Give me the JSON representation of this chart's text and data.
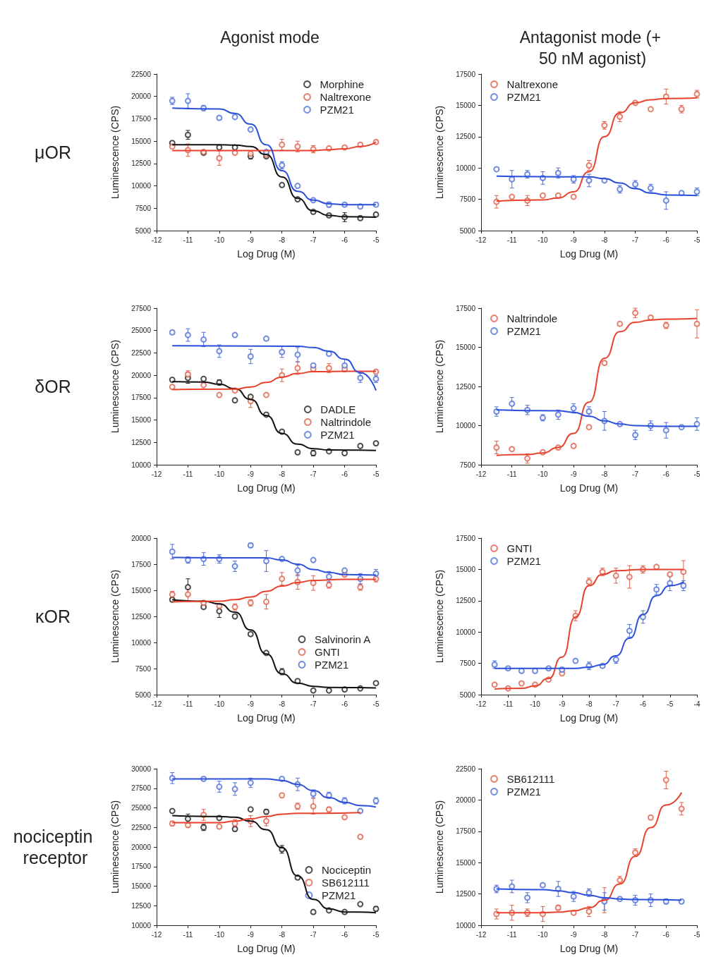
{
  "chart_data": [
    {
      "type": "scatter",
      "title": "Agonist mode",
      "annotations": [
        "μOR"
      ],
      "xlabel": "Log Drug (M)",
      "ylabel": "Luminescence (CPS)",
      "legend": "top right",
      "marker": "circle",
      "xlim": [
        -12,
        -5
      ],
      "xticks": [
        -12,
        -11,
        -10,
        -9,
        -8,
        -7,
        -6,
        -5
      ],
      "ylim": [
        5000,
        22500
      ],
      "yticks": [
        5000,
        7500,
        10000,
        12500,
        15000,
        17500,
        20000,
        22500
      ],
      "x": [
        -11.5,
        -11,
        -10.5,
        -10,
        -9.5,
        -9,
        -8.5,
        -8,
        -7.5,
        -7,
        -6.5,
        -6,
        -5.5,
        -5
      ],
      "series": [
        {
          "name": "Morphine",
          "color": "#222222",
          "values": [
            14800,
            15700,
            13700,
            14300,
            14300,
            13300,
            13300,
            10100,
            8500,
            7100,
            6700,
            6500,
            6400,
            6800
          ],
          "errors": [
            null,
            500,
            null,
            null,
            null,
            300,
            null,
            null,
            null,
            null,
            null,
            500,
            null,
            null
          ]
        },
        {
          "name": "Naltrexone",
          "color": "#e0604a",
          "values": [
            14400,
            14000,
            13800,
            13100,
            13700,
            13600,
            13500,
            14600,
            14400,
            14100,
            14200,
            14300,
            14600,
            14900
          ],
          "errors": [
            null,
            700,
            null,
            800,
            null,
            null,
            null,
            600,
            600,
            400,
            null,
            null,
            null,
            null
          ]
        },
        {
          "name": "PZM21",
          "color": "#4f6fd8",
          "values": [
            19500,
            19500,
            18700,
            17600,
            17700,
            16300,
            13800,
            12300,
            10000,
            8400,
            7900,
            7900,
            7700,
            7900
          ],
          "errors": [
            400,
            800,
            300,
            null,
            null,
            null,
            null,
            400,
            null,
            null,
            300,
            null,
            null,
            null
          ]
        },
        {
          "type": "line",
          "marker": "none",
          "color": "#111111",
          "x": [
            -11.5,
            -10,
            -9.5,
            -9,
            -8.5,
            -8,
            -7.5,
            -7,
            -6.5,
            -6,
            -5
          ],
          "values": [
            14600,
            14600,
            14550,
            14400,
            13500,
            11000,
            8600,
            7200,
            6700,
            6550,
            6500
          ]
        },
        {
          "type": "line",
          "marker": "none",
          "color": "#e8412c",
          "x": [
            -11.5,
            -7,
            -6.5,
            -6,
            -5.5,
            -5
          ],
          "values": [
            13950,
            13950,
            14050,
            14150,
            14400,
            14900
          ]
        },
        {
          "type": "line",
          "marker": "none",
          "color": "#2b4fdb",
          "x": [
            -11.5,
            -10,
            -9.5,
            -9,
            -8.5,
            -8,
            -7.5,
            -7,
            -6.5,
            -6,
            -5
          ],
          "values": [
            18700,
            18600,
            18100,
            16900,
            14600,
            11700,
            9400,
            8400,
            8000,
            7900,
            7900
          ]
        }
      ]
    },
    {
      "type": "scatter",
      "title": "Antagonist mode (+ 50 nM agonist)",
      "xlabel": "Log Drug (M)",
      "ylabel": "Luminescence (CPS)",
      "legend": "top left",
      "marker": "circle",
      "xlim": [
        -12,
        -5
      ],
      "xticks": [
        -12,
        -11,
        -10,
        -9,
        -8,
        -7,
        -6,
        -5
      ],
      "ylim": [
        5000,
        17500
      ],
      "yticks": [
        5000,
        7500,
        10000,
        12500,
        15000,
        17500
      ],
      "x": [
        -11.5,
        -11,
        -10.5,
        -10,
        -9.5,
        -9,
        -8.5,
        -8,
        -7.5,
        -7,
        -6.5,
        -6,
        -5.5,
        -5
      ],
      "series": [
        {
          "name": "Naltrexone",
          "color": "#e0604a",
          "values": [
            7300,
            7700,
            7400,
            7800,
            7800,
            7700,
            10200,
            13400,
            14100,
            15200,
            14700,
            15700,
            14700,
            15900
          ],
          "errors": [
            500,
            null,
            400,
            null,
            null,
            null,
            400,
            300,
            400,
            null,
            null,
            600,
            300,
            300
          ]
        },
        {
          "name": "PZM21",
          "color": "#4f6fd8",
          "values": [
            9900,
            9100,
            9500,
            9200,
            9600,
            9100,
            9000,
            9000,
            8300,
            8700,
            8400,
            7400,
            8000,
            8100
          ],
          "errors": [
            null,
            700,
            300,
            500,
            400,
            300,
            500,
            null,
            300,
            300,
            300,
            700,
            null,
            300
          ]
        },
        {
          "type": "line",
          "marker": "none",
          "color": "#e8412c",
          "x": [
            -11.5,
            -10,
            -9.5,
            -9,
            -8.5,
            -8,
            -7.5,
            -7,
            -6.5,
            -6,
            -5
          ],
          "values": [
            7350,
            7450,
            7600,
            8100,
            9700,
            12500,
            14400,
            15200,
            15450,
            15550,
            15600
          ]
        },
        {
          "type": "line",
          "marker": "none",
          "color": "#2b4fdb",
          "x": [
            -11.5,
            -8.5,
            -8,
            -7.5,
            -7,
            -6.5,
            -6,
            -5
          ],
          "values": [
            9350,
            9300,
            9150,
            8800,
            8350,
            8000,
            7850,
            7800
          ]
        }
      ]
    },
    {
      "type": "scatter",
      "annotations": [
        "δOR"
      ],
      "xlabel": "Log Drug (M)",
      "ylabel": "Luminescence (CPS)",
      "legend": "bottom right",
      "marker": "circle",
      "xlim": [
        -12,
        -5
      ],
      "xticks": [
        -12,
        -11,
        -10,
        -9,
        -8,
        -7,
        -6,
        -5
      ],
      "ylim": [
        10000,
        27500
      ],
      "yticks": [
        10000,
        12500,
        15000,
        17500,
        20000,
        22500,
        25000,
        27500
      ],
      "x": [
        -11.5,
        -11,
        -10.5,
        -10,
        -9.5,
        -9,
        -8.5,
        -8,
        -7.5,
        -7,
        -6.5,
        -6,
        -5.5,
        -5
      ],
      "series": [
        {
          "name": "DADLE",
          "color": "#222222",
          "values": [
            19500,
            19700,
            19600,
            19200,
            17200,
            17600,
            15600,
            13700,
            11400,
            11300,
            11500,
            11300,
            12100,
            12400
          ],
          "errors": [
            null,
            600,
            null,
            300,
            null,
            null,
            null,
            null,
            null,
            300,
            null,
            null,
            null,
            null
          ]
        },
        {
          "name": "Naltrindole",
          "color": "#e0604a",
          "values": [
            18700,
            20100,
            18900,
            17800,
            18300,
            17100,
            17800,
            20000,
            20800,
            20700,
            20800,
            20700,
            null,
            20400
          ],
          "errors": [
            null,
            400,
            null,
            null,
            null,
            700,
            null,
            700,
            700,
            null,
            500,
            null,
            null,
            null
          ]
        },
        {
          "name": "PZM21",
          "color": "#4f6fd8",
          "values": [
            24800,
            24500,
            24000,
            22700,
            24500,
            22100,
            24100,
            22600,
            22300,
            21100,
            22400,
            21100,
            19700,
            19600
          ],
          "errors": [
            null,
            700,
            800,
            700,
            null,
            800,
            null,
            600,
            800,
            null,
            null,
            700,
            500,
            400
          ]
        },
        {
          "type": "line",
          "marker": "none",
          "color": "#111111",
          "x": [
            -11.5,
            -10.5,
            -10,
            -9.5,
            -9,
            -8.5,
            -8,
            -7.5,
            -7,
            -6.5,
            -5
          ],
          "values": [
            19300,
            19250,
            19000,
            18500,
            17300,
            15500,
            13500,
            12300,
            11800,
            11650,
            11600
          ]
        },
        {
          "type": "line",
          "marker": "none",
          "color": "#e8412c",
          "x": [
            -11.5,
            -9.5,
            -9,
            -8.5,
            -8,
            -7.5,
            -7,
            -6,
            -5
          ],
          "values": [
            18400,
            18450,
            18700,
            19200,
            19800,
            20200,
            20400,
            20450,
            20450
          ]
        },
        {
          "type": "line",
          "marker": "none",
          "color": "#2b4fdb",
          "x": [
            -11.5,
            -7.5,
            -7,
            -6.5,
            -6,
            -5.5,
            -5
          ],
          "values": [
            23300,
            23250,
            23100,
            22700,
            21800,
            20300,
            18300
          ]
        }
      ]
    },
    {
      "type": "scatter",
      "xlabel": "Log Drug (M)",
      "ylabel": "Luminescence (CPS)",
      "legend": "top left",
      "marker": "circle",
      "xlim": [
        -12,
        -5
      ],
      "xticks": [
        -12,
        -11,
        -10,
        -9,
        -8,
        -7,
        -6,
        -5
      ],
      "ylim": [
        7500,
        17500
      ],
      "yticks": [
        7500,
        10000,
        12500,
        15000,
        17500
      ],
      "x": [
        -11.5,
        -11,
        -10.5,
        -10,
        -9.5,
        -9,
        -8.5,
        -8,
        -7.5,
        -7,
        -6.5,
        -6,
        -5.5,
        -5
      ],
      "series": [
        {
          "name": "Naltrindole",
          "color": "#e0604a",
          "values": [
            8600,
            8500,
            7900,
            8300,
            8600,
            8700,
            9900,
            14000,
            16500,
            17200,
            16900,
            16400,
            null,
            16500
          ],
          "errors": [
            400,
            null,
            300,
            null,
            null,
            null,
            null,
            null,
            null,
            300,
            null,
            200,
            null,
            900
          ]
        },
        {
          "name": "PZM21",
          "color": "#4f6fd8",
          "values": [
            10900,
            11400,
            11000,
            10500,
            10700,
            11100,
            10900,
            10300,
            10100,
            9400,
            10000,
            9700,
            9900,
            10100
          ],
          "errors": [
            300,
            400,
            300,
            200,
            300,
            300,
            300,
            600,
            null,
            300,
            300,
            500,
            null,
            400
          ]
        },
        {
          "type": "line",
          "marker": "none",
          "color": "#e8412c",
          "x": [
            -11.5,
            -10.5,
            -10,
            -9.5,
            -9,
            -8.5,
            -8,
            -7.5,
            -7,
            -6.5,
            -6,
            -5
          ],
          "values": [
            8100,
            8150,
            8250,
            8600,
            9500,
            11500,
            14300,
            16000,
            16600,
            16750,
            16800,
            16850
          ]
        },
        {
          "type": "line",
          "marker": "none",
          "color": "#2b4fdb",
          "x": [
            -11.5,
            -9.5,
            -9,
            -8.5,
            -8,
            -7.5,
            -7,
            -6,
            -5
          ],
          "values": [
            11000,
            10950,
            10850,
            10600,
            10300,
            10100,
            10000,
            9950,
            9950
          ]
        }
      ]
    },
    {
      "type": "scatter",
      "annotations": [
        "κOR"
      ],
      "xlabel": "Log Drug (M)",
      "ylabel": "Luminescence (CPS)",
      "legend": "bottom right",
      "marker": "circle",
      "xlim": [
        -12,
        -5
      ],
      "xticks": [
        -12,
        -11,
        -10,
        -9,
        -8,
        -7,
        -6,
        -5
      ],
      "ylim": [
        5000,
        20000
      ],
      "yticks": [
        5000,
        7500,
        10000,
        12500,
        15000,
        17500,
        20000
      ],
      "x": [
        -11.5,
        -11,
        -10.5,
        -10,
        -9.5,
        -9,
        -8.5,
        -8,
        -7.5,
        -7,
        -6.5,
        -6,
        -5.5,
        -5
      ],
      "series": [
        {
          "name": "Salvinorin A",
          "color": "#222222",
          "values": [
            14100,
            15300,
            13400,
            13000,
            12500,
            10800,
            9000,
            7200,
            6300,
            5400,
            5400,
            5500,
            5600,
            6100
          ],
          "errors": [
            null,
            800,
            null,
            600,
            null,
            null,
            null,
            300,
            null,
            null,
            null,
            null,
            null,
            null
          ]
        },
        {
          "name": "GNTI",
          "color": "#e0604a",
          "values": [
            14600,
            14600,
            13800,
            13500,
            13400,
            13800,
            13900,
            16100,
            15800,
            15700,
            15500,
            16500,
            15300,
            16100
          ],
          "errors": [
            300,
            700,
            null,
            null,
            300,
            300,
            700,
            600,
            700,
            700,
            300,
            null,
            300,
            300
          ]
        },
        {
          "name": "PZM21",
          "color": "#4f6fd8",
          "values": [
            18700,
            17900,
            18000,
            18000,
            17300,
            19300,
            17800,
            18000,
            16900,
            17900,
            16300,
            16900,
            16100,
            16600
          ],
          "errors": [
            700,
            300,
            600,
            400,
            500,
            200,
            1000,
            null,
            500,
            null,
            500,
            null,
            500,
            400
          ]
        },
        {
          "type": "line",
          "marker": "none",
          "color": "#111111",
          "x": [
            -11.5,
            -10.5,
            -10,
            -9.5,
            -9,
            -8.5,
            -8,
            -7.5,
            -7,
            -6.5,
            -5
          ],
          "values": [
            14100,
            13950,
            13700,
            12900,
            11200,
            8900,
            7000,
            6100,
            5800,
            5700,
            5650
          ]
        },
        {
          "type": "line",
          "marker": "none",
          "color": "#e8412c",
          "x": [
            -11.5,
            -10,
            -9.5,
            -9,
            -8.5,
            -8,
            -7.5,
            -7,
            -6,
            -5
          ],
          "values": [
            13900,
            13950,
            14100,
            14350,
            14900,
            15400,
            15750,
            15950,
            16050,
            16050
          ]
        },
        {
          "type": "line",
          "marker": "none",
          "color": "#2b4fdb",
          "x": [
            -11.5,
            -8.5,
            -8,
            -7.5,
            -7,
            -6.5,
            -6,
            -5
          ],
          "values": [
            18150,
            18100,
            17900,
            17500,
            17000,
            16700,
            16500,
            16450
          ]
        }
      ]
    },
    {
      "type": "scatter",
      "xlabel": "Log Drug (M)",
      "ylabel": "Luminescence (CPS)",
      "legend": "top left",
      "marker": "circle",
      "xlim": [
        -12,
        -4
      ],
      "xticks": [
        -12,
        -11,
        -10,
        -9,
        -8,
        -7,
        -6,
        -5,
        -4
      ],
      "ylim": [
        5000,
        17500
      ],
      "yticks": [
        5000,
        7500,
        10000,
        12500,
        15000,
        17500
      ],
      "x": [
        -11.5,
        -11,
        -10.5,
        -10,
        -9.5,
        -9,
        -8.5,
        -8,
        -7.5,
        -7,
        -6.5,
        -6,
        -5.5,
        -5,
        -4.5
      ],
      "series": [
        {
          "name": "GNTI",
          "color": "#e0604a",
          "values": [
            5800,
            5500,
            5900,
            5800,
            6200,
            6700,
            11300,
            14000,
            14800,
            14500,
            14400,
            15000,
            15200,
            14600,
            14800
          ],
          "errors": [
            null,
            null,
            null,
            null,
            null,
            null,
            400,
            300,
            300,
            600,
            900,
            300,
            null,
            null,
            900
          ]
        },
        {
          "name": "PZM21",
          "color": "#4f6fd8",
          "values": [
            7400,
            7100,
            6900,
            6900,
            7100,
            7000,
            7700,
            7300,
            7300,
            7800,
            10100,
            11200,
            13400,
            13900,
            13700
          ],
          "errors": [
            300,
            null,
            null,
            null,
            null,
            null,
            null,
            300,
            null,
            300,
            500,
            500,
            400,
            600,
            400
          ]
        },
        {
          "type": "line",
          "marker": "none",
          "color": "#e8412c",
          "x": [
            -11.5,
            -10.5,
            -10,
            -9.5,
            -9,
            -8.5,
            -8,
            -7.5,
            -7,
            -6,
            -4.5
          ],
          "values": [
            5450,
            5500,
            5700,
            6300,
            8000,
            11200,
            13700,
            14600,
            14900,
            15000,
            15000
          ]
        },
        {
          "type": "line",
          "marker": "none",
          "color": "#2b4fdb",
          "x": [
            -11.5,
            -8.5,
            -8,
            -7.5,
            -7,
            -6.5,
            -6,
            -5.5,
            -5,
            -4.5
          ],
          "values": [
            7100,
            7100,
            7200,
            7400,
            8100,
            9500,
            11400,
            12900,
            13700,
            14000
          ]
        }
      ]
    },
    {
      "type": "scatter",
      "annotations": [
        "nociceptin receptor"
      ],
      "xlabel": "Log Drug (M)",
      "ylabel": "Luminescence (CPS)",
      "legend": "bottom right",
      "marker": "circle",
      "xlim": [
        -12,
        -5
      ],
      "xticks": [
        -12,
        -11,
        -10,
        -9,
        -8,
        -7,
        -6,
        -5
      ],
      "ylim": [
        10000,
        30000
      ],
      "yticks": [
        10000,
        12500,
        15000,
        17500,
        20000,
        22500,
        25000,
        27500,
        30000
      ],
      "x": [
        -11.5,
        -11,
        -10.5,
        -10,
        -9.5,
        -9,
        -8.5,
        -8,
        -7.5,
        -7,
        -6.5,
        -6,
        -5.5,
        -5
      ],
      "series": [
        {
          "name": "Nociceptin",
          "color": "#222222",
          "values": [
            24600,
            23600,
            22500,
            23700,
            22300,
            24800,
            24500,
            19700,
            16100,
            11700,
            11900,
            11700,
            12700,
            12100
          ],
          "errors": [
            null,
            600,
            400,
            null,
            300,
            null,
            300,
            500,
            null,
            null,
            null,
            null,
            null,
            300
          ]
        },
        {
          "name": "SB612111",
          "color": "#e0604a",
          "values": [
            23000,
            22800,
            24100,
            22600,
            23000,
            23300,
            23300,
            26600,
            25200,
            25200,
            24800,
            23800,
            21300,
            null
          ],
          "errors": [
            300,
            300,
            700,
            null,
            500,
            700,
            600,
            null,
            400,
            1000,
            300,
            null,
            null,
            null
          ]
        },
        {
          "name": "PZM21",
          "color": "#4f6fd8",
          "values": [
            28800,
            null,
            28700,
            27700,
            27400,
            28200,
            null,
            28700,
            28000,
            26800,
            26600,
            25900,
            24600,
            25900
          ],
          "errors": [
            700,
            null,
            null,
            700,
            800,
            600,
            null,
            null,
            800,
            500,
            400,
            400,
            null,
            400
          ]
        },
        {
          "type": "line",
          "marker": "none",
          "color": "#111111",
          "x": [
            -11.5,
            -10,
            -9.5,
            -9,
            -8.5,
            -8,
            -7.5,
            -7,
            -6.5,
            -6,
            -5
          ],
          "values": [
            24000,
            23900,
            23800,
            23300,
            22200,
            19900,
            16300,
            13300,
            12100,
            11700,
            11600
          ]
        },
        {
          "type": "line",
          "marker": "none",
          "color": "#e8412c",
          "x": [
            -11.5,
            -10,
            -9.5,
            -9,
            -8.5,
            -8,
            -7.5,
            -5.5
          ],
          "values": [
            23100,
            23100,
            23300,
            23600,
            23900,
            24200,
            24300,
            24400
          ]
        },
        {
          "type": "line",
          "marker": "none",
          "color": "#2b4fdb",
          "x": [
            -11.5,
            -8.5,
            -8,
            -7.5,
            -7,
            -6.5,
            -6,
            -5.5,
            -5
          ],
          "values": [
            28700,
            28700,
            28500,
            28000,
            27200,
            26300,
            25700,
            25300,
            25100
          ]
        }
      ]
    },
    {
      "type": "scatter",
      "xlabel": "Log Drug (M)",
      "ylabel": "Luminescence (CPS)",
      "legend": "top left",
      "marker": "circle",
      "xlim": [
        -12,
        -5
      ],
      "xticks": [
        -12,
        -11,
        -10,
        -9,
        -8,
        -7,
        -6,
        -5
      ],
      "ylim": [
        10000,
        22500
      ],
      "yticks": [
        10000,
        12500,
        15000,
        17500,
        20000,
        22500
      ],
      "x": [
        -11.5,
        -11,
        -10.5,
        -10,
        -9.5,
        -9,
        -8.5,
        -8,
        -7.5,
        -7,
        -6.5,
        -6,
        -5.5
      ],
      "series": [
        {
          "name": "SB612111",
          "color": "#e0604a",
          "values": [
            10900,
            11000,
            11000,
            10900,
            11400,
            11000,
            11100,
            12000,
            13600,
            15800,
            18600,
            21600,
            19300
          ],
          "errors": [
            400,
            600,
            300,
            600,
            200,
            null,
            400,
            1000,
            300,
            300,
            null,
            700,
            500
          ]
        },
        {
          "name": "PZM21",
          "color": "#4f6fd8",
          "values": [
            12900,
            13100,
            12200,
            13200,
            12900,
            12300,
            12600,
            11900,
            12100,
            12000,
            12000,
            11900,
            11900
          ],
          "errors": [
            300,
            500,
            400,
            null,
            600,
            400,
            300,
            700,
            null,
            400,
            500,
            200,
            null
          ]
        },
        {
          "type": "line",
          "marker": "none",
          "color": "#e8412c",
          "x": [
            -11.5,
            -10,
            -9.5,
            -9,
            -8.5,
            -8,
            -7.5,
            -7,
            -6.5,
            -6,
            -5.5
          ],
          "values": [
            11000,
            11000,
            11050,
            11150,
            11400,
            12000,
            13300,
            15500,
            17800,
            19600,
            20600
          ]
        },
        {
          "type": "line",
          "marker": "none",
          "color": "#2b4fdb",
          "x": [
            -11.5,
            -10,
            -9.5,
            -9,
            -8.5,
            -8,
            -7.5,
            -7,
            -5.5
          ],
          "values": [
            12900,
            12850,
            12750,
            12600,
            12400,
            12200,
            12100,
            12050,
            12000
          ]
        }
      ]
    }
  ]
}
